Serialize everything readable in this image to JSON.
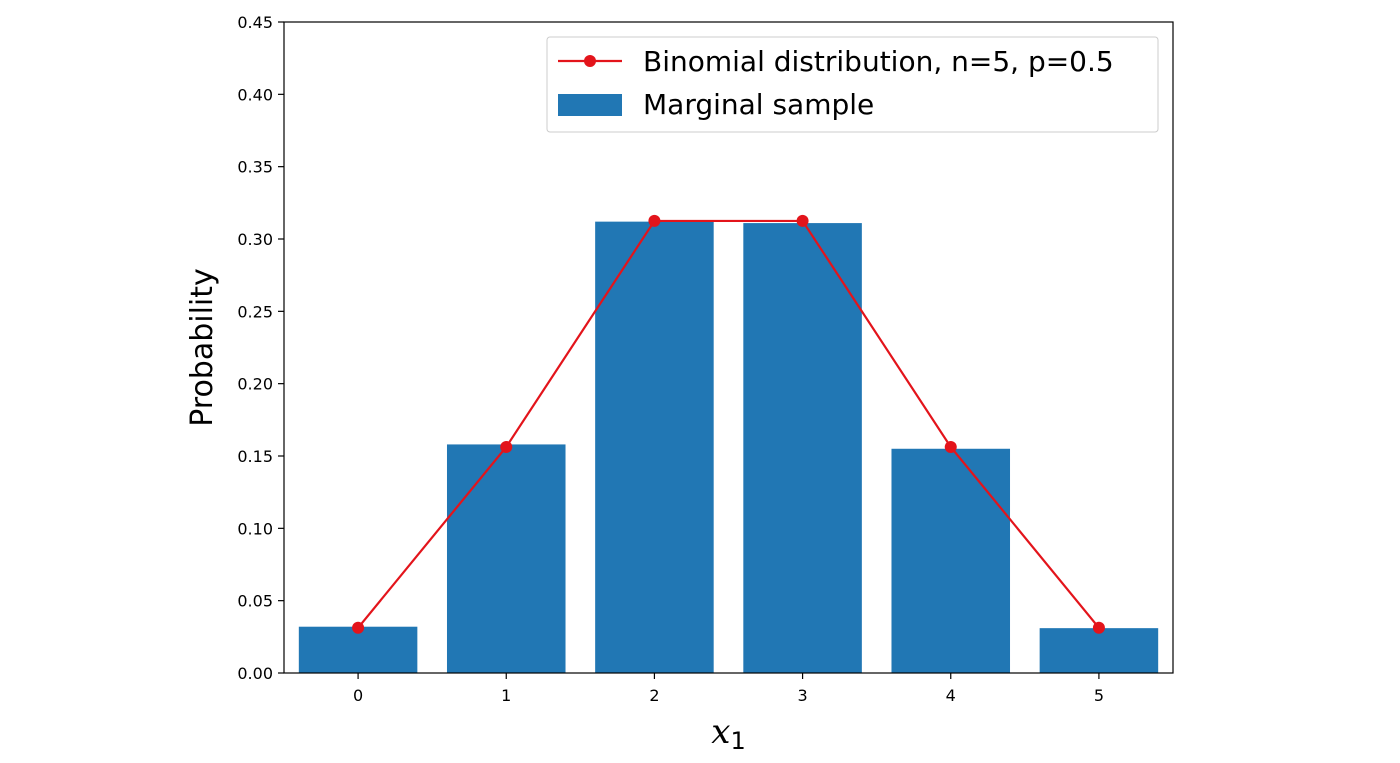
{
  "chart_data": {
    "type": "bar",
    "categories": [
      "0",
      "1",
      "2",
      "3",
      "4",
      "5"
    ],
    "x": [
      0,
      1,
      2,
      3,
      4,
      5
    ],
    "series": [
      {
        "name": "Marginal sample",
        "type": "bar",
        "color": "#2177b4",
        "values": [
          0.032,
          0.158,
          0.312,
          0.311,
          0.155,
          0.031
        ]
      },
      {
        "name": "Binomial distribution, n=5, p=0.5",
        "type": "line",
        "color": "#e3141b",
        "marker": "circle",
        "values": [
          0.03125,
          0.15625,
          0.3125,
          0.3125,
          0.15625,
          0.03125
        ]
      }
    ],
    "ylabel": "Probability",
    "xlabel": {
      "main": "x",
      "sub": "1"
    },
    "ylim": [
      0,
      0.45
    ],
    "xlim": [
      -0.5,
      5.5
    ],
    "yticks": [
      "0.00",
      "0.05",
      "0.10",
      "0.15",
      "0.20",
      "0.25",
      "0.30",
      "0.35",
      "0.40",
      "0.45"
    ],
    "xticks": [
      "0",
      "1",
      "2",
      "3",
      "4",
      "5"
    ],
    "legend_position": "top-right",
    "grid": false
  }
}
